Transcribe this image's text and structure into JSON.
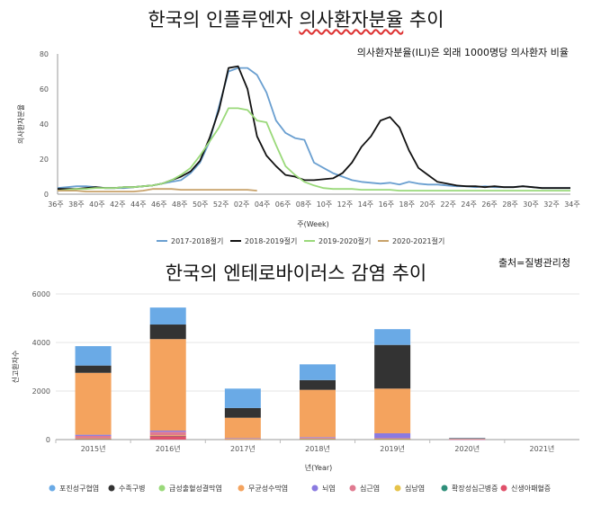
{
  "title1": {
    "plain": "한국의 인플루엔자 ",
    "underlined": "의사환자분율",
    "rest": " 추이"
  },
  "note1": "의사환자분율(ILI)은 외래 1000명당 의사환자 비율",
  "title2": "한국의 엔테로바이러스 감염 추이",
  "source": "출처=질병관리청",
  "chart_data": [
    {
      "type": "line",
      "ylabel": "의사환자분율",
      "xlabel": "주(Week)",
      "ylim": [
        0,
        80
      ],
      "yticks": [
        0,
        20,
        40,
        60,
        80
      ],
      "xticks": [
        "36주",
        "38주",
        "40주",
        "42주",
        "44주",
        "46주",
        "48주",
        "50주",
        "52주",
        "02주",
        "04주",
        "06주",
        "08주",
        "10주",
        "12주",
        "14주",
        "16주",
        "18주",
        "20주",
        "22주",
        "24주",
        "26주",
        "28주",
        "30주",
        "32주",
        "34주"
      ],
      "grid": false,
      "legend": "bottom",
      "series": [
        {
          "name": "2017-2018절기",
          "color": "#6a9fd0",
          "values": [
            3.5,
            4,
            4.5,
            4.5,
            4,
            3.5,
            3.5,
            3.5,
            4,
            4.5,
            5,
            6,
            7,
            8,
            12,
            18,
            30,
            50,
            70,
            72,
            72,
            68,
            58,
            42,
            35,
            32,
            31,
            18,
            15,
            12,
            10,
            8,
            7,
            6.5,
            6,
            6.5,
            5.5,
            7,
            6,
            5.5,
            5.5,
            5,
            4.5,
            4.5,
            4,
            4.5,
            4,
            4,
            4,
            4.5,
            4,
            3.5,
            3.5,
            3.5,
            3.5
          ]
        },
        {
          "name": "2018-2019절기",
          "color": "#111111",
          "values": [
            3,
            3,
            3,
            3.5,
            4,
            3.5,
            3.5,
            4,
            4,
            4.5,
            5,
            6,
            8,
            10,
            13,
            19,
            32,
            48,
            72,
            73,
            60,
            33,
            22,
            16,
            11,
            10,
            8,
            8,
            8.5,
            9,
            12,
            18,
            27,
            33,
            42,
            44,
            38,
            25,
            15,
            11,
            7,
            6,
            5,
            4.5,
            4.5,
            4,
            4.5,
            4,
            4,
            4.5,
            4,
            3.5,
            3.5,
            3.5,
            3.5
          ]
        },
        {
          "name": "2019-2020절기",
          "color": "#9ad97a",
          "values": [
            2,
            2.5,
            3,
            3,
            3.5,
            3.5,
            3.5,
            4,
            4,
            4.5,
            5,
            6,
            8,
            11,
            15,
            22,
            30,
            38,
            49,
            49,
            48,
            42,
            41,
            28,
            16,
            11,
            7,
            5,
            3.5,
            3,
            3,
            3,
            2.5,
            2.5,
            2.5,
            2.5,
            2,
            2,
            2,
            2,
            2,
            2,
            2,
            2,
            2,
            2,
            2,
            2,
            2,
            2,
            2,
            2,
            2,
            2,
            2
          ]
        },
        {
          "name": "2020-2021절기",
          "color": "#c8a26a",
          "values": [
            2,
            2,
            2,
            1.5,
            1.5,
            1.5,
            1.5,
            1.5,
            1.5,
            2,
            3,
            3,
            3,
            2.5,
            2.5,
            2.5,
            2.5,
            2.5,
            2.5,
            2.5,
            2.5,
            2
          ]
        }
      ]
    },
    {
      "type": "bar",
      "stacked": true,
      "ylabel": "신고환자수",
      "xlabel": "년(Year)",
      "ylim": [
        0,
        6000
      ],
      "yticks": [
        0,
        2000,
        4000,
        6000
      ],
      "categories": [
        "2015년",
        "2016년",
        "2017년",
        "2018년",
        "2019년",
        "2020년",
        "2021년"
      ],
      "legend": "bottom",
      "series": [
        {
          "name": "신생아패혈증",
          "color": "#e0506a",
          "values": [
            30,
            150,
            10,
            20,
            20,
            5,
            0
          ]
        },
        {
          "name": "확장성심근병증",
          "color": "#2f8f7a",
          "values": [
            10,
            10,
            5,
            10,
            10,
            0,
            0
          ]
        },
        {
          "name": "심낭염",
          "color": "#e6c34a",
          "values": [
            10,
            10,
            5,
            10,
            10,
            0,
            0
          ]
        },
        {
          "name": "심근염",
          "color": "#e07a90",
          "values": [
            100,
            150,
            20,
            30,
            20,
            5,
            0
          ]
        },
        {
          "name": "뇌염",
          "color": "#8a7ae0",
          "values": [
            50,
            50,
            20,
            30,
            200,
            5,
            0
          ]
        },
        {
          "name": "무균성수막염",
          "color": "#f4a35e",
          "values": [
            2550,
            3770,
            840,
            1950,
            1840,
            45,
            0
          ]
        },
        {
          "name": "급성출혈성결막염",
          "color": "#9ad97a",
          "values": [
            0,
            0,
            0,
            0,
            0,
            0,
            0
          ]
        },
        {
          "name": "수족구병",
          "color": "#333333",
          "values": [
            300,
            600,
            400,
            400,
            1800,
            10,
            0
          ]
        },
        {
          "name": "포진성구협염",
          "color": "#6aaae6",
          "values": [
            800,
            700,
            800,
            650,
            650,
            5,
            0
          ]
        }
      ]
    }
  ]
}
